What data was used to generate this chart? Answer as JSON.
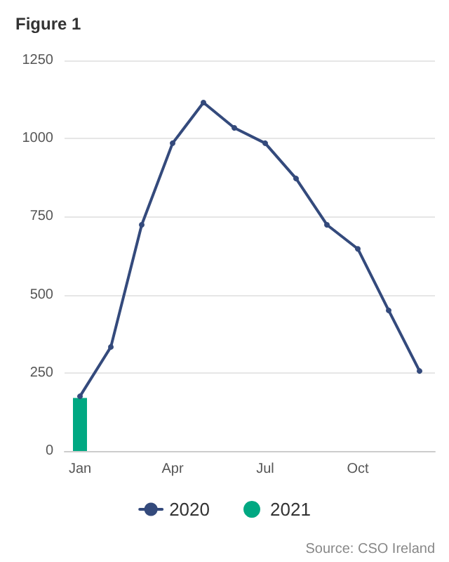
{
  "chart_data": {
    "type": "line",
    "title": "Figure 1",
    "categories": [
      "Jan",
      null,
      null,
      "Apr",
      null,
      null,
      "Jul",
      null,
      null,
      "Oct",
      null,
      null
    ],
    "series": [
      {
        "name": "2020",
        "color": "#344a7c",
        "values": [
          175,
          333,
          724,
          985,
          1115,
          1034,
          985,
          872,
          724,
          647,
          450,
          256
        ]
      },
      {
        "name": "2021",
        "type": "bar",
        "color": "#00a882",
        "values": [
          170,
          null,
          null,
          null,
          null,
          null,
          null,
          null,
          null,
          null,
          null,
          null
        ]
      }
    ],
    "ylim": [
      0,
      1250
    ],
    "yticks": [
      0,
      250,
      500,
      750,
      1000,
      1250
    ],
    "grid": "y",
    "legend": "bottom",
    "marker": "circle",
    "line_style": "solid",
    "annotations": [
      "Source: CSO Ireland"
    ]
  }
}
